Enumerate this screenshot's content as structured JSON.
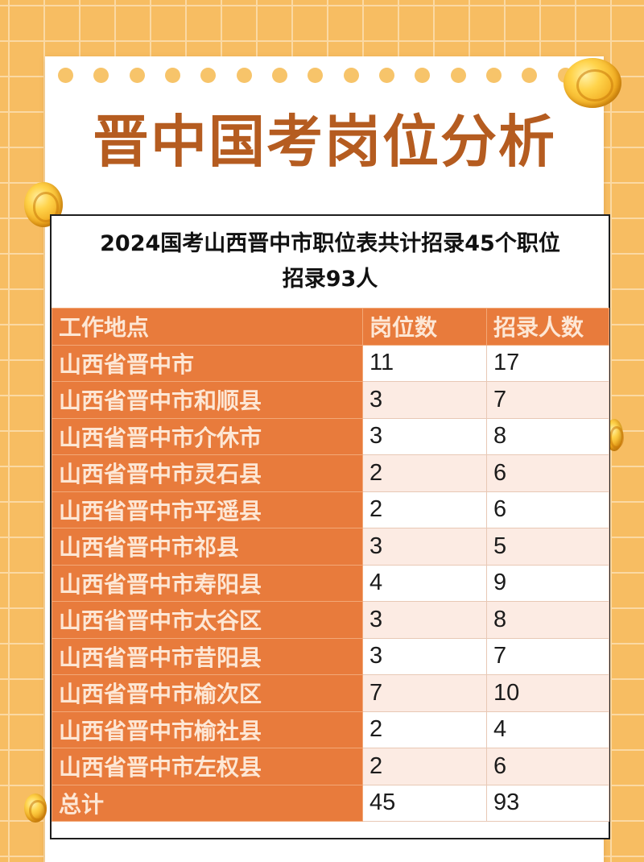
{
  "title": "晋中国考岗位分析",
  "caption": {
    "line1": "2024国考山西晋中市职位表共计招录45个职位",
    "line2": "招录93人"
  },
  "table": {
    "headers": [
      "工作地点",
      "岗位数",
      "招录人数"
    ],
    "rows": [
      {
        "place": "山西省晋中市",
        "posts": "11",
        "hires": "17"
      },
      {
        "place": "山西省晋中市和顺县",
        "posts": "3",
        "hires": "7"
      },
      {
        "place": "山西省晋中市介休市",
        "posts": "3",
        "hires": "8"
      },
      {
        "place": "山西省晋中市灵石县",
        "posts": "2",
        "hires": "6"
      },
      {
        "place": "山西省晋中市平遥县",
        "posts": "2",
        "hires": "6"
      },
      {
        "place": "山西省晋中市祁县",
        "posts": "3",
        "hires": "5"
      },
      {
        "place": "山西省晋中市寿阳县",
        "posts": "4",
        "hires": "9"
      },
      {
        "place": "山西省晋中市太谷区",
        "posts": "3",
        "hires": "8"
      },
      {
        "place": "山西省晋中市昔阳县",
        "posts": "3",
        "hires": "7"
      },
      {
        "place": "山西省晋中市榆次区",
        "posts": "7",
        "hires": "10"
      },
      {
        "place": "山西省晋中市榆社县",
        "posts": "2",
        "hires": "4"
      },
      {
        "place": "山西省晋中市左权县",
        "posts": "2",
        "hires": "6"
      }
    ],
    "total": {
      "place": "总计",
      "posts": "45",
      "hires": "93"
    }
  },
  "colors": {
    "background": "#f7bd62",
    "title": "#b55c20",
    "header": "#e87b3c",
    "stripe": "#fcebe3"
  }
}
